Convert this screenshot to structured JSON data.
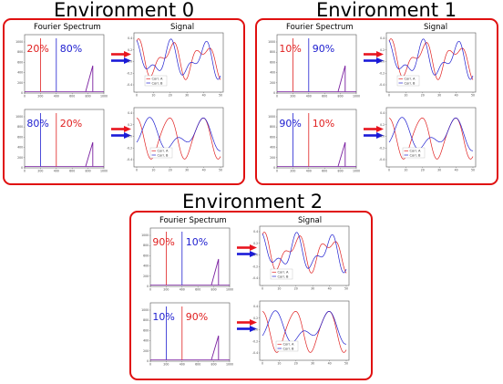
{
  "environments": [
    {
      "title": "Environment 0",
      "spectrum_header": "Fourier Spectrum",
      "signal_header": "Signal",
      "rows": [
        {
          "left_pct": "20%",
          "left_color": "#e02020",
          "right_pct": "80%",
          "right_color": "#2020d0",
          "spike_color": "#7a1fa0",
          "legend": [
            "Corr. A",
            "Corr. B"
          ],
          "wave": "corr"
        },
        {
          "left_pct": "80%",
          "left_color": "#2020d0",
          "right_pct": "20%",
          "right_color": "#e02020",
          "spike_color": "#7a1fa0",
          "legend": [
            "Corr. A",
            "Corr. B"
          ],
          "wave": "anti"
        }
      ]
    },
    {
      "title": "Environment 1",
      "spectrum_header": "Fourier Spectrum",
      "signal_header": "Signal",
      "rows": [
        {
          "left_pct": "10%",
          "left_color": "#e02020",
          "right_pct": "90%",
          "right_color": "#2020d0",
          "spike_color": "#7a1fa0",
          "legend": [
            "Corr. A",
            "Corr. B"
          ],
          "wave": "corr"
        },
        {
          "left_pct": "90%",
          "left_color": "#2020d0",
          "right_pct": "10%",
          "right_color": "#e02020",
          "spike_color": "#7a1fa0",
          "legend": [
            "Corr. A",
            "Corr. B"
          ],
          "wave": "anti"
        }
      ]
    },
    {
      "title": "Environment 2",
      "spectrum_header": "Fourier Spectrum",
      "signal_header": "Signal",
      "rows": [
        {
          "left_pct": "90%",
          "left_color": "#e02020",
          "right_pct": "10%",
          "right_color": "#2020d0",
          "spike_color": "#7a1fa0",
          "legend": [
            "Corr. A",
            "Corr. B"
          ],
          "wave": "corr"
        },
        {
          "left_pct": "10%",
          "left_color": "#2020d0",
          "right_pct": "90%",
          "right_color": "#e02020",
          "spike_color": "#7a1fa0",
          "legend": [
            "Corr. A",
            "Corr. B"
          ],
          "wave": "anti"
        }
      ]
    }
  ],
  "spectrum_axes": {
    "y_ticks": [
      "0",
      "200",
      "400",
      "600",
      "800",
      "1000"
    ],
    "x_ticks": [
      "0",
      "100",
      "200",
      "300",
      "400",
      "500",
      "600",
      "700",
      "800",
      "900",
      "1000"
    ]
  },
  "signal_axes": {
    "y_ticks": [
      "0.4",
      "0.2",
      "0.0",
      "-0.2",
      "-0.4"
    ],
    "x_ticks": [
      "0",
      "10",
      "20",
      "30",
      "40",
      "50"
    ]
  },
  "colors": {
    "box_border": "#e01010",
    "arrow_red": "#e8141e",
    "arrow_blue": "#1a1ad8",
    "signal_a": "#e02020",
    "signal_b": "#2020d0"
  }
}
